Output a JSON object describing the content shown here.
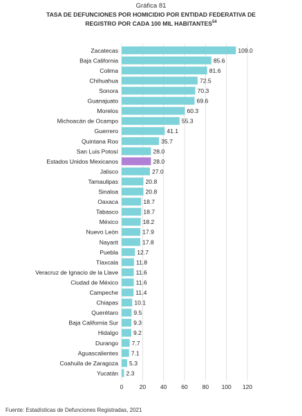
{
  "header": {
    "figure_number": "Gráfica 81",
    "title": "TASA DE DEFUNCIONES POR HOMICIDIO POR ENTIDAD FEDERATIVA DE REGISTRO POR CADA 100 MIL HABITANTES",
    "title_superscript": "54"
  },
  "footer": {
    "source": "Fuente: Estadísticas de Defunciones Registradas, 2021"
  },
  "colors": {
    "bar": "#7dd3d9",
    "highlight": "#b07fd6",
    "grid": "#d9d9d9",
    "text": "#222222"
  },
  "chart_data": {
    "type": "bar",
    "orientation": "horizontal",
    "categories": [
      "Zacatecas",
      "Baja California",
      "Colima",
      "Chihuahua",
      "Sonora",
      "Guanajuato",
      "Morelos",
      "Michoacán de Ocampo",
      "Guerrero",
      "Quintana Roo",
      "San Luis Potosí",
      "Estados Unidos Mexicanos",
      "Jalisco",
      "Tamaulipas",
      "Sinaloa",
      "Oaxaca",
      "Tabasco",
      "México",
      "Nuevo León",
      "Nayarit",
      "Puebla",
      "Tlaxcala",
      "Veracruz de Ignacio de la Llave",
      "Ciudad de México",
      "Campeche",
      "Chiapas",
      "Querétaro",
      "Baja California Sur",
      "Hidalgo",
      "Durango",
      "Aguascalientes",
      "Coahuila de Zaragoza",
      "Yucatán"
    ],
    "values": [
      109.0,
      85.6,
      81.6,
      72.5,
      70.3,
      69.6,
      60.3,
      55.3,
      41.1,
      35.7,
      28.0,
      28.0,
      27.0,
      20.8,
      20.8,
      18.7,
      18.7,
      18.2,
      17.9,
      17.8,
      12.7,
      11.8,
      11.6,
      11.6,
      11.4,
      10.1,
      9.5,
      9.3,
      9.2,
      7.7,
      7.1,
      5.3,
      2.3
    ],
    "value_labels": [
      "109.0",
      "85.6",
      "81.6",
      "72.5",
      "70.3",
      "69.6",
      "60.3",
      "55.3",
      "41.1",
      "35.7",
      "28.0",
      "28.0",
      "27.0",
      "20.8",
      "20.8",
      "18.7",
      "18.7",
      "18.2",
      "17.9",
      "17.8",
      "12.7",
      "11.8",
      "11.6",
      "11.6",
      "11.4",
      "10.1",
      "9.5",
      "9.3",
      "9.2",
      "7.7",
      "7.1",
      "5.3",
      "2.3"
    ],
    "highlight_category": "Estados Unidos Mexicanos",
    "xlim": [
      0,
      120
    ],
    "xticks": [
      0,
      20,
      40,
      60,
      80,
      100,
      120
    ],
    "xtick_labels": [
      "0",
      "20",
      "40",
      "60",
      "80",
      "100",
      "120"
    ],
    "grid": true,
    "legend": "none"
  }
}
